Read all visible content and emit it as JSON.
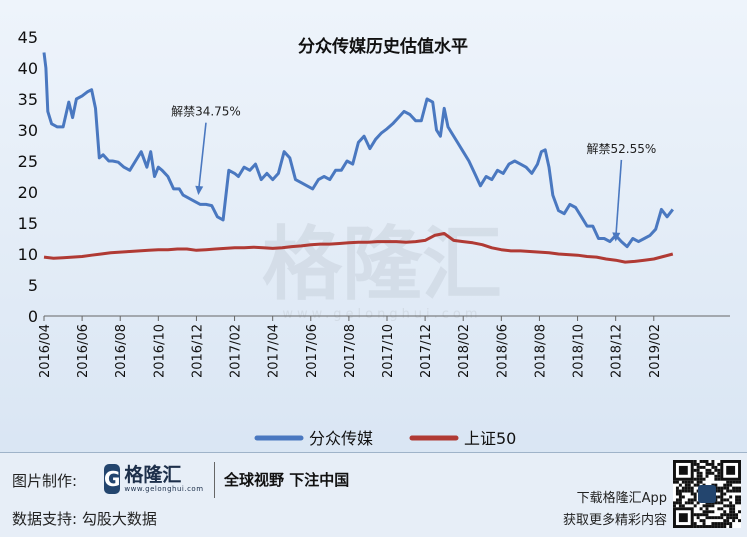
{
  "chart_data": {
    "type": "line",
    "title": "分众传媒历史估值水平",
    "ylim": [
      0,
      45
    ],
    "yticks": [
      0,
      5,
      10,
      15,
      20,
      25,
      30,
      35,
      40,
      45
    ],
    "xlim": [
      0,
      36
    ],
    "xticks": [
      {
        "x": 0,
        "label": "2016/04"
      },
      {
        "x": 2,
        "label": "2016/06"
      },
      {
        "x": 4,
        "label": "2016/08"
      },
      {
        "x": 6,
        "label": "2016/10"
      },
      {
        "x": 8,
        "label": "2016/12"
      },
      {
        "x": 10,
        "label": "2017/02"
      },
      {
        "x": 12,
        "label": "2017/04"
      },
      {
        "x": 14,
        "label": "2017/06"
      },
      {
        "x": 16,
        "label": "2017/08"
      },
      {
        "x": 18,
        "label": "2017/10"
      },
      {
        "x": 20,
        "label": "2017/12"
      },
      {
        "x": 22,
        "label": "2018/02"
      },
      {
        "x": 24,
        "label": "2018/06"
      },
      {
        "x": 26,
        "label": "2018/08"
      },
      {
        "x": 28,
        "label": "2018/10"
      },
      {
        "x": 30,
        "label": "2018/12"
      },
      {
        "x": 32,
        "label": "2019/02"
      }
    ],
    "series": [
      {
        "name": "分众传媒",
        "color": "#4a78c0",
        "x": [
          0,
          0.1,
          0.2,
          0.4,
          0.7,
          1.0,
          1.3,
          1.5,
          1.7,
          2.0,
          2.3,
          2.5,
          2.7,
          2.9,
          3.1,
          3.4,
          3.6,
          3.9,
          4.2,
          4.5,
          4.8,
          5.1,
          5.4,
          5.6,
          5.8,
          6.0,
          6.2,
          6.5,
          6.8,
          7.1,
          7.3,
          7.6,
          7.9,
          8.2,
          8.5,
          8.8,
          9.1,
          9.4,
          9.7,
          10.0,
          10.2,
          10.5,
          10.8,
          11.1,
          11.4,
          11.7,
          12.0,
          12.3,
          12.6,
          12.9,
          13.2,
          13.5,
          13.8,
          14.1,
          14.4,
          14.7,
          15.0,
          15.3,
          15.6,
          15.9,
          16.2,
          16.5,
          16.8,
          17.1,
          17.4,
          17.7,
          18.0,
          18.3,
          18.6,
          18.9,
          19.2,
          19.5,
          19.8,
          20.1,
          20.4,
          20.6,
          20.8,
          21.0,
          21.2,
          21.4,
          21.7,
          22.0,
          22.3,
          22.6,
          22.9,
          23.2,
          23.5,
          23.8,
          24.1,
          24.4,
          24.7,
          25.0,
          25.3,
          25.6,
          25.9,
          26.1,
          26.3,
          26.5,
          26.7,
          27.0,
          27.3,
          27.6,
          27.9,
          28.2,
          28.5,
          28.8,
          29.1,
          29.4,
          29.7,
          30.0,
          30.3,
          30.6,
          30.9,
          31.2,
          31.5,
          31.8,
          32.1,
          32.4,
          32.7,
          33.0
        ],
        "y": [
          42.5,
          40,
          33,
          31,
          30.5,
          30.5,
          34.5,
          32,
          35,
          35.5,
          36.2,
          36.5,
          33.5,
          25.5,
          26,
          25,
          25,
          24.8,
          24,
          23.5,
          25,
          26.5,
          24,
          26.5,
          22.5,
          24,
          23.5,
          22.5,
          20.5,
          20.5,
          19.5,
          19,
          18.5,
          18,
          18,
          17.8,
          16,
          15.5,
          23.5,
          23,
          22.5,
          24,
          23.5,
          24.5,
          22,
          23,
          22,
          23,
          26.5,
          25.5,
          22,
          21.5,
          21,
          20.5,
          22,
          22.5,
          22,
          23.5,
          23.5,
          25,
          24.5,
          28,
          29,
          27,
          28.5,
          29.5,
          30.2,
          31,
          32,
          33,
          32.5,
          31.5,
          31.5,
          35,
          34.5,
          30,
          29,
          33.5,
          30.5,
          29.5,
          28,
          26.5,
          25,
          23,
          21,
          22.5,
          22,
          23.5,
          23,
          24.5,
          25,
          24.5,
          24,
          23,
          24.5,
          26.5,
          26.8,
          24,
          19.5,
          17,
          16.5,
          18,
          17.5,
          16,
          14.5,
          14.5,
          12.5,
          12.5,
          12,
          13,
          12,
          11.2,
          12.5,
          12,
          12.5,
          13,
          14,
          17.2,
          16,
          17.2
        ],
        "annotation": {
          "text": "解禁34.75%",
          "x": 8.1,
          "y": 19.5,
          "label_x": 8.5,
          "label_y": 31.5
        }
      },
      {
        "name": "上证50",
        "color": "#b03a34",
        "x": [
          0,
          0.5,
          1.0,
          1.5,
          2.0,
          2.5,
          3.0,
          3.5,
          4.0,
          4.5,
          5.0,
          5.5,
          6.0,
          6.5,
          7.0,
          7.5,
          8.0,
          8.5,
          9.0,
          9.5,
          10.0,
          10.5,
          11.0,
          11.5,
          12.0,
          12.5,
          13.0,
          13.5,
          14.0,
          14.5,
          15.0,
          15.5,
          16.0,
          16.5,
          17.0,
          17.5,
          18.0,
          18.5,
          19.0,
          19.5,
          20.0,
          20.5,
          21.0,
          21.5,
          22.0,
          22.5,
          23.0,
          23.5,
          24.0,
          24.5,
          25.0,
          25.5,
          26.0,
          26.5,
          27.0,
          27.5,
          28.0,
          28.5,
          29.0,
          29.5,
          30.0,
          30.5,
          31.0,
          31.5,
          32.0,
          32.5,
          33.0
        ],
        "y": [
          9.5,
          9.3,
          9.4,
          9.5,
          9.6,
          9.8,
          10.0,
          10.2,
          10.3,
          10.4,
          10.5,
          10.6,
          10.7,
          10.7,
          10.8,
          10.8,
          10.6,
          10.7,
          10.8,
          10.9,
          11.0,
          11.0,
          11.1,
          11.0,
          10.9,
          11.0,
          11.2,
          11.3,
          11.5,
          11.6,
          11.6,
          11.7,
          11.8,
          11.9,
          11.9,
          12.0,
          12.0,
          12.0,
          11.9,
          12.0,
          12.2,
          13.0,
          13.3,
          12.2,
          12.0,
          11.8,
          11.5,
          11.0,
          10.7,
          10.5,
          10.5,
          10.4,
          10.3,
          10.2,
          10.0,
          9.9,
          9.8,
          9.6,
          9.5,
          9.2,
          9.0,
          8.7,
          8.8,
          9.0,
          9.2,
          9.6,
          10.0
        ],
        "annotation": {
          "text": "解禁52.55%",
          "x": 30.0,
          "y": 12.0,
          "label_x": 30.3,
          "label_y": 25.5
        }
      }
    ],
    "legend": {
      "position": "bottom"
    },
    "grid": false
  },
  "watermark": {
    "cn": "格隆汇",
    "url": "www.gelonghui.com"
  },
  "footer": {
    "credit_label": "图片制作:",
    "logo_cn": "格隆汇",
    "logo_en": "www.gelonghui.com",
    "slogan": "全球视野  下注中国",
    "data_label": "数据支持:  勾股大数据",
    "app_line1": "下载格隆汇App",
    "app_line2": "获取更多精彩内容"
  }
}
